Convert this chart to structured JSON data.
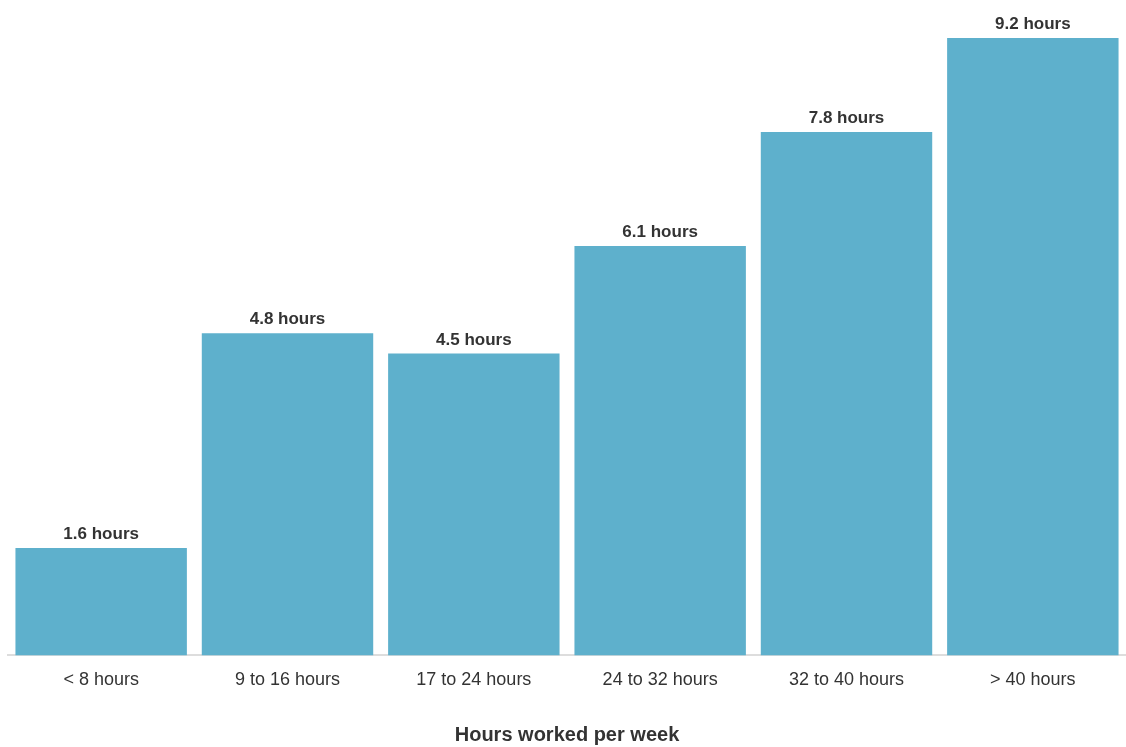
{
  "chart_data": {
    "type": "bar",
    "xlabel": "Hours worked per week",
    "categories": [
      "< 8 hours",
      "9 to 16 hours",
      "17 to 24 hours",
      "24 to 32 hours",
      "32 to 40 hours",
      "> 40 hours"
    ],
    "values": [
      1.6,
      4.8,
      4.5,
      6.1,
      7.8,
      9.2
    ],
    "value_labels": [
      "1.6 hours",
      "4.8 hours",
      "4.5 hours",
      "6.1 hours",
      "7.8 hours",
      "9.2 hours"
    ],
    "color": "#5eb0cc"
  }
}
